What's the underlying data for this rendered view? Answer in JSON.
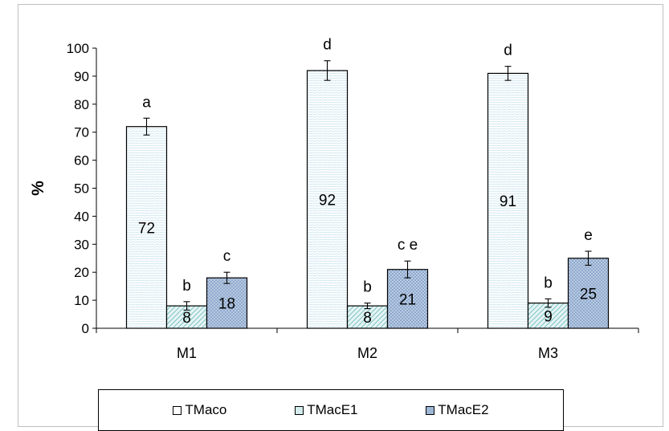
{
  "chart_data": {
    "type": "bar",
    "categories": [
      "M1",
      "M2",
      "M3"
    ],
    "ylabel": "%",
    "ylim": [
      0,
      100
    ],
    "yticks": [
      0,
      10,
      20,
      30,
      40,
      50,
      60,
      70,
      80,
      90,
      100
    ],
    "legend_position": "bottom",
    "series": [
      {
        "name": "TMaco",
        "values": [
          72,
          92,
          91
        ],
        "errors": [
          3,
          3.5,
          2.5
        ],
        "value_labels": [
          "72",
          "92",
          "91"
        ],
        "letters": [
          "a",
          "d",
          "d"
        ],
        "color": "#ffffff",
        "pattern": "light-horizontal"
      },
      {
        "name": "TMacE1",
        "values": [
          8,
          8,
          9
        ],
        "errors": [
          1.5,
          1,
          1.5
        ],
        "value_labels": [
          "8",
          "8",
          "9"
        ],
        "letters": [
          "b",
          "b",
          "b"
        ],
        "color": "#d4ecec",
        "pattern": "light-diagonal"
      },
      {
        "name": "TMacE2",
        "values": [
          18,
          21,
          25
        ],
        "errors": [
          2,
          3,
          2.5
        ],
        "value_labels": [
          "18",
          "21",
          "25"
        ],
        "letters": [
          "c",
          "c e",
          "e"
        ],
        "color": "#9fb7d6",
        "pattern": "dotted"
      }
    ]
  }
}
